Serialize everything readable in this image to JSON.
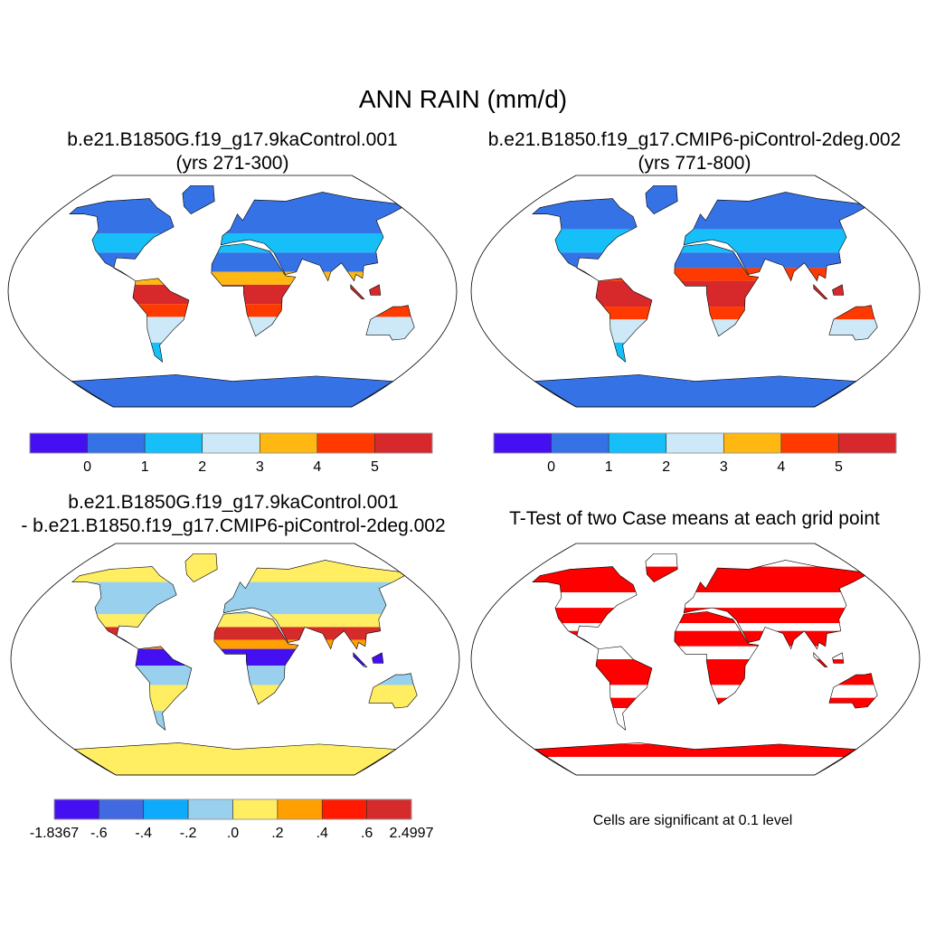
{
  "figure": {
    "title": "ANN RAIN (mm/d)"
  },
  "panels": [
    {
      "title_line1": "b.e21.B1850G.f19_g17.9kaControl.001",
      "title_line2": "(yrs 271-300)"
    },
    {
      "title_line1": "b.e21.B1850.f19_g17.CMIP6-piControl-2deg.002",
      "title_line2": "(yrs 771-800)"
    },
    {
      "title_line1": "b.e21.B1850G.f19_g17.9kaControl.001",
      "title_line2": "- b.e21.B1850.f19_g17.CMIP6-piControl-2deg.002"
    },
    {
      "title_line1": "T-Test of two Case means at each grid point",
      "footnote": "Cells are significant at 0.1 level"
    }
  ],
  "colorbars": {
    "rain": {
      "colors": [
        "#4410f2",
        "#3572e6",
        "#16bff8",
        "#cde8f7",
        "#ffb812",
        "#ff3a00",
        "#d7282b"
      ],
      "labels": [
        "0",
        "1",
        "2",
        "3",
        "4",
        "5"
      ]
    },
    "diff": {
      "colors": [
        "#4410f2",
        "#4169e0",
        "#0eaafc",
        "#98d0ee",
        "#ffed62",
        "#ffa000",
        "#ff1a00",
        "#d62b2b"
      ],
      "labels": [
        "-1.8367",
        "-.6",
        "-.4",
        "-.2",
        ".0",
        ".2",
        ".4",
        ".6",
        "2.4997"
      ]
    },
    "significance_color": "#ff0000"
  }
}
